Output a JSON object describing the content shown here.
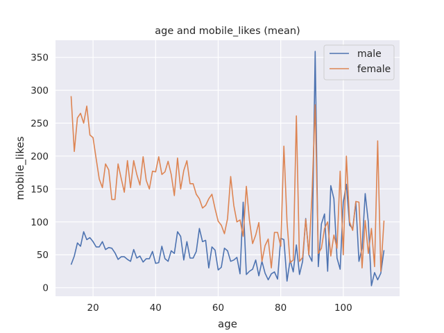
{
  "chart_data": {
    "type": "line",
    "title": "age and mobile_likes (mean)",
    "xlabel": "age",
    "ylabel": "mobile_likes",
    "xlim": [
      8,
      118
    ],
    "ylim": [
      -13,
      376
    ],
    "xticks": [
      20,
      40,
      60,
      80,
      100
    ],
    "yticks": [
      0,
      50,
      100,
      150,
      200,
      250,
      300,
      350
    ],
    "grid": true,
    "legend_position": "top-right",
    "x": [
      13,
      14,
      15,
      16,
      17,
      18,
      19,
      20,
      21,
      22,
      23,
      24,
      25,
      26,
      27,
      28,
      29,
      30,
      31,
      32,
      33,
      34,
      35,
      36,
      37,
      38,
      39,
      40,
      41,
      42,
      43,
      44,
      45,
      46,
      47,
      48,
      49,
      50,
      51,
      52,
      53,
      54,
      55,
      56,
      57,
      58,
      59,
      60,
      61,
      62,
      63,
      64,
      65,
      66,
      67,
      68,
      69,
      70,
      71,
      72,
      73,
      74,
      75,
      76,
      77,
      78,
      79,
      80,
      81,
      82,
      83,
      84,
      85,
      86,
      87,
      88,
      89,
      90,
      91,
      92,
      93,
      94,
      95,
      96,
      97,
      98,
      99,
      100,
      101,
      102,
      103,
      104,
      105,
      106,
      107,
      108,
      109,
      110,
      111,
      112,
      113
    ],
    "series": [
      {
        "name": "male",
        "color": "#4c72b0",
        "values": [
          35,
          48,
          68,
          63,
          85,
          73,
          76,
          70,
          62,
          62,
          70,
          58,
          61,
          60,
          53,
          43,
          47,
          47,
          43,
          40,
          58,
          45,
          48,
          39,
          44,
          44,
          55,
          37,
          38,
          63,
          44,
          40,
          56,
          52,
          85,
          78,
          42,
          70,
          45,
          45,
          55,
          90,
          70,
          72,
          30,
          62,
          57,
          27,
          31,
          60,
          56,
          40,
          42,
          46,
          21,
          130,
          20,
          25,
          28,
          42,
          18,
          40,
          22,
          12,
          21,
          24,
          13,
          75,
          73,
          10,
          42,
          24,
          65,
          20,
          40,
          105,
          50,
          40,
          359,
          32,
          97,
          112,
          25,
          155,
          135,
          45,
          28,
          130,
          157,
          95,
          90,
          130,
          40,
          60,
          143,
          100,
          3,
          23,
          12,
          22,
          57
        ]
      },
      {
        "name": "female",
        "color": "#dd8452",
        "values": [
          291,
          207,
          258,
          265,
          250,
          276,
          232,
          228,
          196,
          165,
          152,
          188,
          179,
          134,
          134,
          188,
          166,
          145,
          193,
          152,
          193,
          172,
          156,
          199,
          163,
          150,
          177,
          176,
          199,
          172,
          176,
          192,
          172,
          140,
          197,
          150,
          178,
          193,
          158,
          158,
          142,
          135,
          121,
          125,
          135,
          142,
          120,
          101,
          95,
          82,
          105,
          169,
          125,
          100,
          103,
          78,
          154,
          102,
          67,
          80,
          99,
          40,
          64,
          74,
          30,
          84,
          84,
          63,
          215,
          100,
          38,
          42,
          261,
          40,
          46,
          104,
          50,
          140,
          278,
          52,
          60,
          90,
          100,
          48,
          80,
          60,
          177,
          50,
          200,
          100,
          87,
          131,
          130,
          30,
          102,
          52,
          90,
          32,
          223,
          25,
          102
        ]
      }
    ]
  }
}
